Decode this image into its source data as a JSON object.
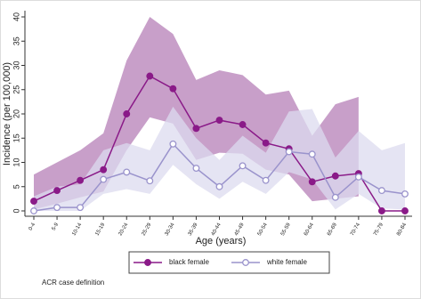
{
  "chart_data": {
    "type": "line",
    "x_label": "Age (years)",
    "y_label": "Incidence (per 100,000)",
    "note": "ACR case definition",
    "categories": [
      "0-4",
      "5-9",
      "10-14",
      "15-19",
      "20-24",
      "25-29",
      "30-34",
      "35-39",
      "40-44",
      "45-49",
      "50-54",
      "55-59",
      "60-64",
      "65-69",
      "70-74",
      "75-79",
      "80-84"
    ],
    "ylim": [
      0,
      40
    ],
    "yticks": [
      0,
      5,
      10,
      15,
      20,
      25,
      30,
      35,
      40
    ],
    "series": [
      {
        "name": "black female",
        "color": "#8a1a88",
        "band_color": "#c59ac6",
        "marker": "filled",
        "values": [
          2,
          4.2,
          6.3,
          8.5,
          20,
          27.8,
          25.2,
          17,
          18.7,
          17.8,
          14,
          12.8,
          6,
          7.2,
          7.7,
          0,
          0
        ],
        "lower": [
          0.3,
          1.5,
          2.8,
          4,
          12.5,
          19.3,
          18,
          10.5,
          12,
          11.8,
          8.5,
          7.5,
          2,
          2.5,
          3,
          null,
          null
        ],
        "upper": [
          7.5,
          10,
          12.5,
          16,
          31,
          40,
          36.5,
          27,
          29,
          28,
          24,
          24.8,
          15.5,
          22,
          23.5,
          null,
          null
        ]
      },
      {
        "name": "white female",
        "color": "#9a93cc",
        "band_color": "#dcdbef",
        "marker": "hollow",
        "values": [
          0,
          0.7,
          0.7,
          6.5,
          8,
          6.2,
          13.8,
          8.8,
          5,
          9.3,
          6.3,
          12.2,
          11.7,
          2.8,
          7,
          4.2,
          3.5
        ],
        "lower": [
          0,
          0,
          0,
          3.5,
          4.5,
          3.5,
          9.5,
          5.5,
          2.5,
          6,
          3.5,
          8,
          6.5,
          0.3,
          3.5,
          0.5,
          0.3
        ],
        "upper": [
          3,
          5,
          5.5,
          12.5,
          14,
          12.5,
          21.5,
          15,
          10.5,
          15.5,
          12,
          20.5,
          21,
          11,
          16.5,
          12.5,
          14
        ]
      }
    ]
  }
}
